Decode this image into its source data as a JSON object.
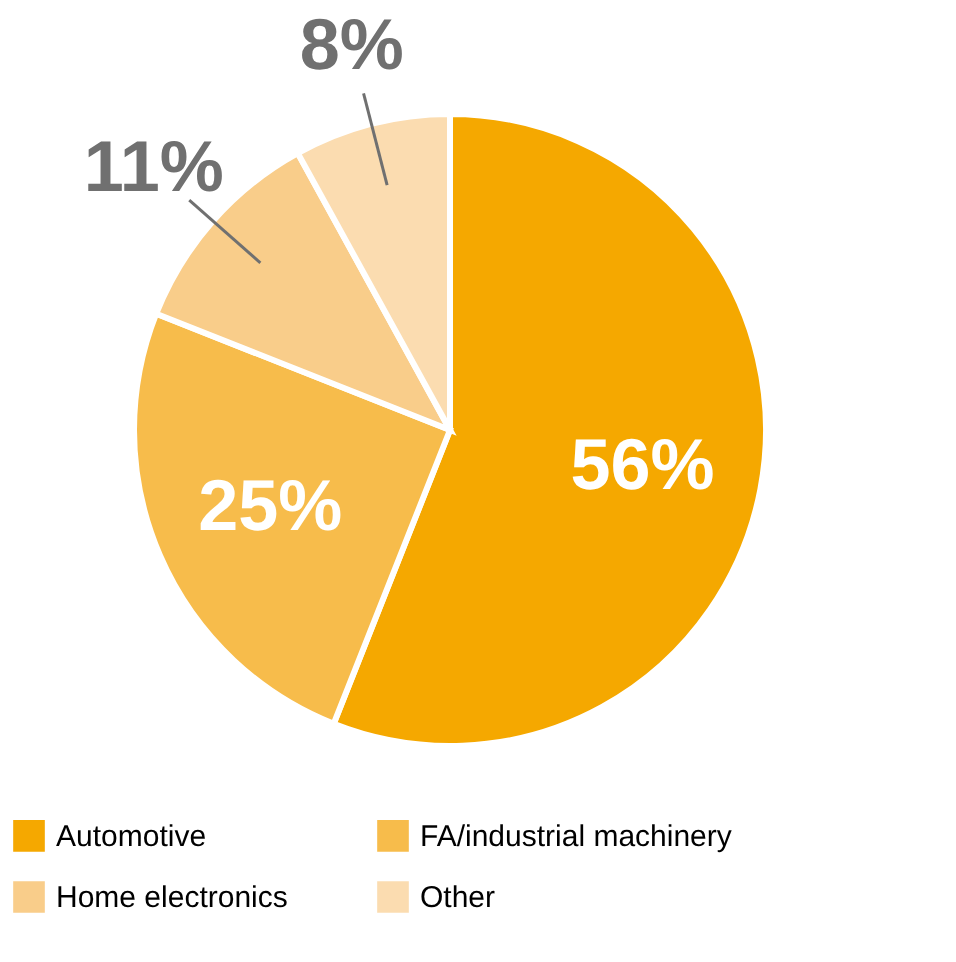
{
  "chart_data": {
    "type": "pie",
    "categories": [
      "Automotive",
      "FA/industrial machinery",
      "Home electronics",
      "Other"
    ],
    "values": [
      56,
      25,
      11,
      8
    ],
    "colors": [
      "#f5a800",
      "#f7bc4b",
      "#f9cd8a",
      "#fbdcb0"
    ],
    "value_labels": [
      "56%",
      "25%",
      "11%",
      "8%"
    ],
    "legend": "bottom"
  }
}
